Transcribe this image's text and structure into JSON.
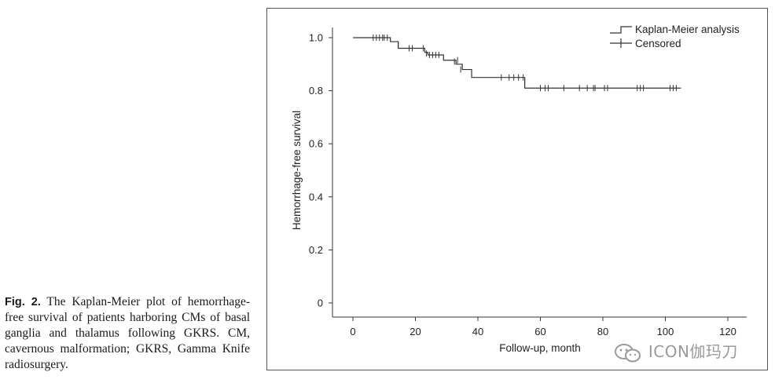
{
  "caption": {
    "label": "Fig. 2.",
    "text": " The Kaplan-Meier plot of hemorrhage-free survival of patients harboring CMs of basal ganglia and thalamus following GKRS. CM, cavernous malformation; GKRS, Gamma Knife radiosurgery."
  },
  "watermark": {
    "text": "ICON伽玛刀",
    "icon": "wechat-icon"
  },
  "chart_data": {
    "type": "line",
    "title": "",
    "xlabel": "Follow-up, month",
    "ylabel": "Hemorrhage-free survival",
    "xlim": [
      0,
      120
    ],
    "ylim": [
      0,
      1.0
    ],
    "xticks": [
      "0",
      "20",
      "40",
      "60",
      "80",
      "100",
      "120"
    ],
    "yticks": [
      "0",
      "0.2",
      "0.4",
      "0.6",
      "0.8",
      "1.0"
    ],
    "legend_position": "top-right",
    "legend": [
      "Kaplan-Meier analysis",
      "Censored"
    ],
    "color": "#333333",
    "series": [
      {
        "name": "Kaplan-Meier analysis",
        "steps": [
          [
            0,
            1.0
          ],
          [
            12,
            0.985
          ],
          [
            14.5,
            0.96
          ],
          [
            21,
            0.96
          ],
          [
            23,
            0.945
          ],
          [
            24,
            0.935
          ],
          [
            29,
            0.915
          ],
          [
            33,
            0.9
          ],
          [
            35,
            0.88
          ],
          [
            38,
            0.85
          ],
          [
            54,
            0.85
          ],
          [
            55,
            0.81
          ],
          [
            105,
            0.81
          ]
        ]
      },
      {
        "name": "Censored",
        "points": [
          [
            6.5,
            1.0
          ],
          [
            7.5,
            1.0
          ],
          [
            8.5,
            1.0
          ],
          [
            9.5,
            1.0
          ],
          [
            10,
            1.0
          ],
          [
            11,
            1.0
          ],
          [
            14.5,
            0.975
          ],
          [
            18,
            0.96
          ],
          [
            19,
            0.96
          ],
          [
            22.5,
            0.96
          ],
          [
            23.5,
            0.94
          ],
          [
            24.5,
            0.935
          ],
          [
            25.5,
            0.935
          ],
          [
            26.5,
            0.935
          ],
          [
            27.5,
            0.935
          ],
          [
            32.5,
            0.91
          ],
          [
            33.5,
            0.915
          ],
          [
            34.5,
            0.88
          ],
          [
            47.5,
            0.85
          ],
          [
            50,
            0.85
          ],
          [
            51.5,
            0.85
          ],
          [
            53,
            0.85
          ],
          [
            54.5,
            0.85
          ],
          [
            55,
            0.835
          ],
          [
            60,
            0.81
          ],
          [
            61.5,
            0.81
          ],
          [
            62.5,
            0.81
          ],
          [
            67.5,
            0.81
          ],
          [
            72.5,
            0.81
          ],
          [
            75,
            0.81
          ],
          [
            77,
            0.81
          ],
          [
            77.5,
            0.81
          ],
          [
            80.5,
            0.81
          ],
          [
            81.5,
            0.81
          ],
          [
            91,
            0.81
          ],
          [
            92,
            0.81
          ],
          [
            93,
            0.81
          ],
          [
            101.5,
            0.81
          ],
          [
            102.5,
            0.81
          ],
          [
            103.5,
            0.81
          ]
        ]
      }
    ]
  }
}
